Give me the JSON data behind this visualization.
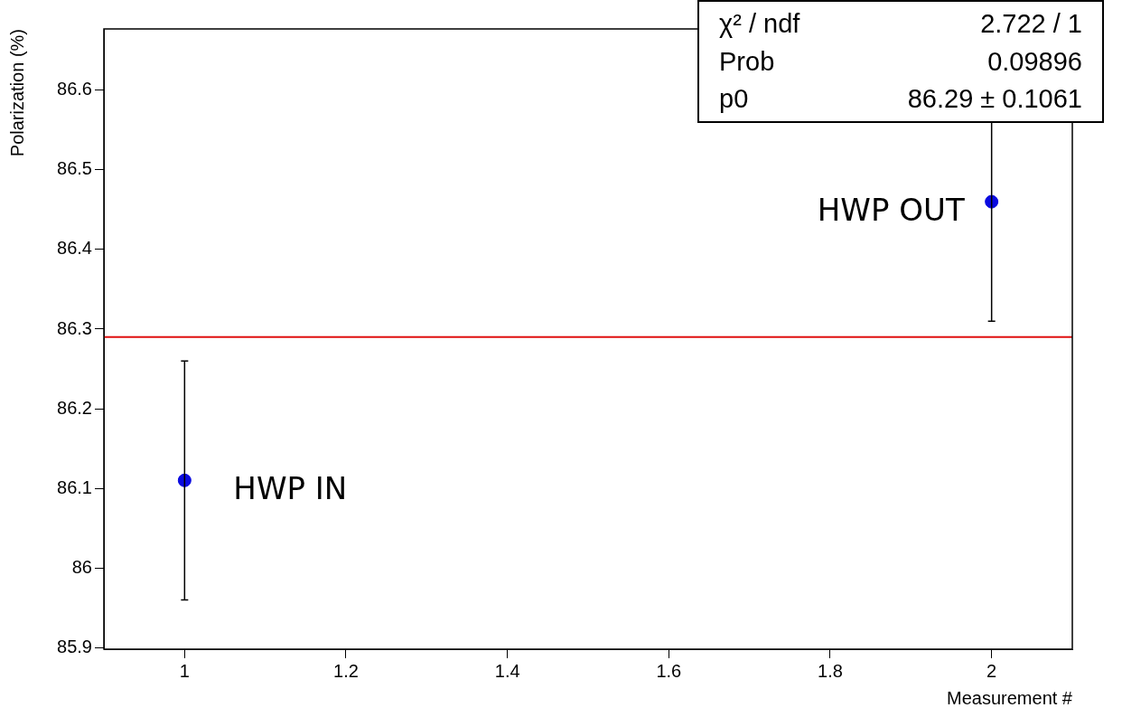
{
  "chart_data": {
    "type": "scatter",
    "xlabel": "Measurement #",
    "ylabel": "Polarization (%)",
    "xlim": [
      0.9,
      2.1
    ],
    "xticks": [
      1,
      1.2,
      1.4,
      1.6,
      1.8,
      2
    ],
    "ylim": [
      85.898,
      86.677
    ],
    "yticks": [
      85.9,
      86,
      86.1,
      86.2,
      86.3,
      86.4,
      86.5,
      86.6
    ],
    "grid": false,
    "legend": false,
    "series": [
      {
        "type": "scatter",
        "marker": "circle",
        "color": "#0a0ae0",
        "x": [
          1,
          2
        ],
        "values": [
          86.11,
          86.46
        ],
        "errors": [
          0.15,
          0.15
        ]
      },
      {
        "type": "line",
        "color": "#e01010",
        "x": [
          0.9,
          2.1
        ],
        "values": [
          86.29,
          86.29
        ]
      }
    ],
    "annotations": [
      "HWP IN",
      "HWP OUT",
      "χ² / ndf",
      "2.722 / 1",
      "Prob",
      "0.09896",
      "p0",
      "86.29 ± 0.1061"
    ]
  }
}
